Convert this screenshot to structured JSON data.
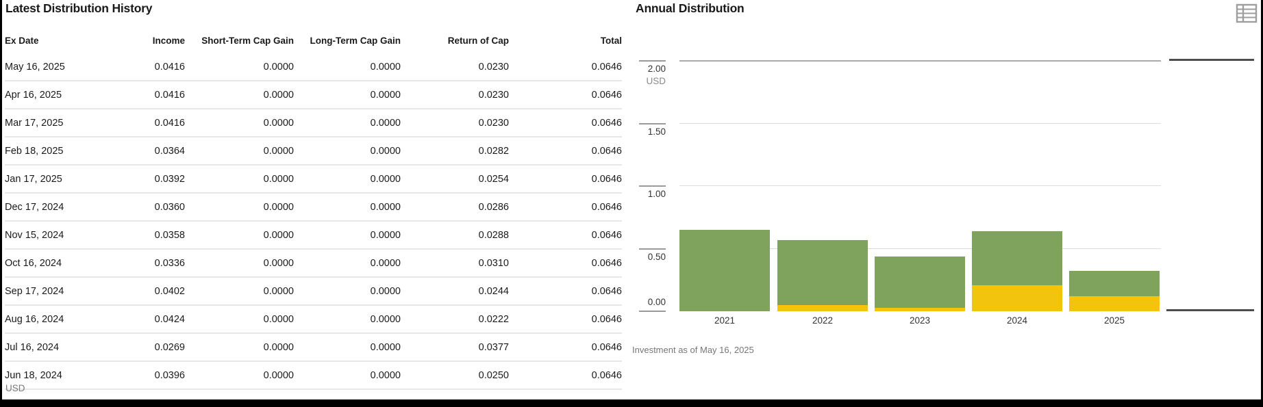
{
  "left_panel": {
    "title": "Latest Distribution History",
    "footer": "USD",
    "table": {
      "columns": [
        "Ex Date",
        "Income",
        "Short-Term Cap Gain",
        "Long-Term Cap Gain",
        "Return of Cap",
        "Total"
      ],
      "rows": [
        [
          "May 16, 2025",
          "0.0416",
          "0.0000",
          "0.0000",
          "0.0230",
          "0.0646"
        ],
        [
          "Apr 16, 2025",
          "0.0416",
          "0.0000",
          "0.0000",
          "0.0230",
          "0.0646"
        ],
        [
          "Mar 17, 2025",
          "0.0416",
          "0.0000",
          "0.0000",
          "0.0230",
          "0.0646"
        ],
        [
          "Feb 18, 2025",
          "0.0364",
          "0.0000",
          "0.0000",
          "0.0282",
          "0.0646"
        ],
        [
          "Jan 17, 2025",
          "0.0392",
          "0.0000",
          "0.0000",
          "0.0254",
          "0.0646"
        ],
        [
          "Dec 17, 2024",
          "0.0360",
          "0.0000",
          "0.0000",
          "0.0286",
          "0.0646"
        ],
        [
          "Nov 15, 2024",
          "0.0358",
          "0.0000",
          "0.0000",
          "0.0288",
          "0.0646"
        ],
        [
          "Oct 16, 2024",
          "0.0336",
          "0.0000",
          "0.0000",
          "0.0310",
          "0.0646"
        ],
        [
          "Sep 17, 2024",
          "0.0402",
          "0.0000",
          "0.0000",
          "0.0244",
          "0.0646"
        ],
        [
          "Aug 16, 2024",
          "0.0424",
          "0.0000",
          "0.0000",
          "0.0222",
          "0.0646"
        ],
        [
          "Jul 16, 2024",
          "0.0269",
          "0.0000",
          "0.0000",
          "0.0377",
          "0.0646"
        ],
        [
          "Jun 18, 2024",
          "0.0396",
          "0.0000",
          "0.0000",
          "0.0250",
          "0.0646"
        ]
      ]
    }
  },
  "right_panel": {
    "title": "Annual Distribution",
    "footnote": "Investment as of May 16, 2025",
    "table_icon": "table-view-icon"
  },
  "chart_data": {
    "type": "bar",
    "stacked": true,
    "title": "Annual Distribution",
    "currency": "USD",
    "categories": [
      "2021",
      "2022",
      "2023",
      "2024",
      "2025"
    ],
    "series": [
      {
        "name": "Income",
        "color": "#7fa25c",
        "values": [
          0.65,
          0.52,
          0.41,
          0.43,
          0.2
        ]
      },
      {
        "name": "S/T Cap Gain",
        "color": "#7b9ac9",
        "values": [
          0.0,
          0.0,
          0.0,
          0.0,
          0.0
        ]
      },
      {
        "name": "L/T Cap Gain",
        "color": "#3a69b1",
        "values": [
          0.0,
          0.0,
          0.0,
          0.0,
          0.0
        ]
      },
      {
        "name": "Return of Cap",
        "color": "#f2c40d",
        "values": [
          0.0,
          0.05,
          0.03,
          0.21,
          0.12
        ]
      }
    ],
    "y_ticks": [
      "2.00",
      "1.50",
      "1.00",
      "0.50",
      "0.00"
    ],
    "ylim": [
      0,
      2.0
    ],
    "grid": true,
    "legend_position": "right"
  }
}
